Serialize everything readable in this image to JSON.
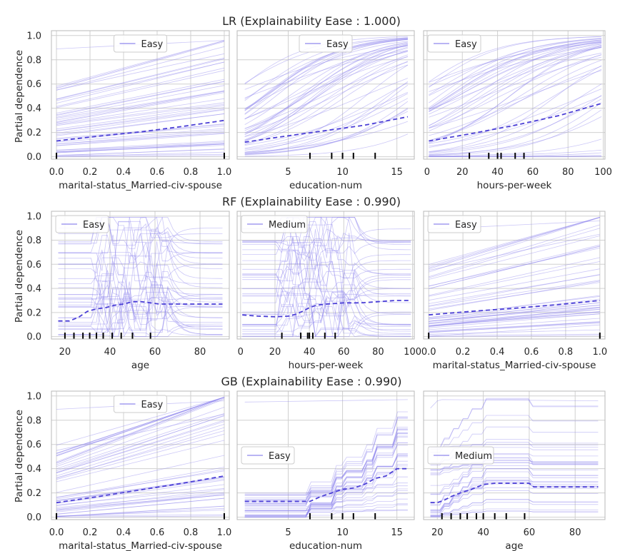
{
  "figure": {
    "ylabel": "Partial dependence",
    "row_titles": [
      "LR (Explainability Ease : 1.000)",
      "RF (Explainability Ease : 0.990)",
      "GB (Explainability Ease : 0.990)"
    ]
  },
  "colors": {
    "ice": "#8f86ee",
    "pd": "#4b3fd6",
    "grid": "#d0d0d0",
    "frame": "#b8b8b8",
    "rug": "#000000"
  },
  "chart_data": [
    {
      "type": "line",
      "model": "LR",
      "feature": "marital-status_Married-civ-spouse",
      "xlabel": "marital-status_Married-civ-spouse",
      "legend": "Easy",
      "legend_loc": "top-center",
      "xlim": [
        -0.03,
        1.03
      ],
      "ylim": [
        -0.02,
        1.04
      ],
      "xticks": [
        0.0,
        0.2,
        0.4,
        0.6,
        0.8,
        1.0
      ],
      "xtick_labels": [
        "0.0",
        "0.2",
        "0.4",
        "0.6",
        "0.8",
        "1.0"
      ],
      "yticks": [
        0.0,
        0.2,
        0.4,
        0.6,
        0.8,
        1.0
      ],
      "ytick_labels": [
        "0.0",
        "0.2",
        "0.4",
        "0.6",
        "0.8",
        "1.0"
      ],
      "pd": {
        "x": [
          0,
          0.25,
          0.5,
          0.75,
          1.0
        ],
        "y": [
          0.13,
          0.17,
          0.205,
          0.25,
          0.3
        ]
      },
      "rug": [
        0,
        1
      ],
      "ice_style": "linear_lr"
    },
    {
      "type": "line",
      "model": "LR",
      "feature": "education-num",
      "xlabel": "education-num",
      "legend": "Easy",
      "legend_loc": "top-center",
      "xlim": [
        0.3,
        16.6
      ],
      "ylim": [
        -0.02,
        1.04
      ],
      "xticks": [
        5,
        10,
        15
      ],
      "xtick_labels": [
        "5",
        "10",
        "15"
      ],
      "yticks": [
        0.0,
        0.2,
        0.4,
        0.6,
        0.8,
        1.0
      ],
      "ytick_labels": [],
      "pd": {
        "x": [
          1,
          4,
          8,
          12,
          16
        ],
        "y": [
          0.12,
          0.16,
          0.21,
          0.26,
          0.33
        ]
      },
      "rug": [
        7,
        9,
        10,
        11,
        13
      ],
      "ice_style": "logistic"
    },
    {
      "type": "line",
      "model": "LR",
      "feature": "hours-per-week",
      "xlabel": "hours-per-week",
      "legend": "Easy",
      "legend_loc": "top-left",
      "xlim": [
        -2,
        101
      ],
      "ylim": [
        -0.02,
        1.04
      ],
      "xticks": [
        0,
        20,
        40,
        60,
        80,
        100
      ],
      "xtick_labels": [
        "0",
        "20",
        "40",
        "60",
        "80",
        "100"
      ],
      "yticks": [
        0.0,
        0.2,
        0.4,
        0.6,
        0.8,
        1.0
      ],
      "ytick_labels": [],
      "pd": {
        "x": [
          1,
          25,
          50,
          75,
          99
        ],
        "y": [
          0.13,
          0.19,
          0.26,
          0.34,
          0.44
        ]
      },
      "rug": [
        24,
        35,
        40,
        42,
        50,
        55
      ],
      "ice_style": "logistic"
    },
    {
      "type": "line",
      "model": "RF",
      "feature": "age",
      "xlabel": "age",
      "legend": "Easy",
      "legend_loc": "top-left",
      "xlim": [
        14,
        93
      ],
      "ylim": [
        -0.02,
        1.04
      ],
      "xticks": [
        20,
        40,
        60,
        80
      ],
      "xtick_labels": [
        "20",
        "40",
        "60",
        "80"
      ],
      "yticks": [
        0.0,
        0.2,
        0.4,
        0.6,
        0.8,
        1.0
      ],
      "ytick_labels": [
        "0.0",
        "0.2",
        "0.4",
        "0.6",
        "0.8",
        "1.0"
      ],
      "pd": {
        "x": [
          17,
          22,
          26,
          30,
          34,
          38,
          42,
          46,
          50,
          54,
          58,
          62,
          70,
          80,
          90
        ],
        "y": [
          0.13,
          0.13,
          0.16,
          0.21,
          0.23,
          0.24,
          0.26,
          0.27,
          0.29,
          0.29,
          0.28,
          0.27,
          0.27,
          0.27,
          0.27
        ]
      },
      "rug": [
        20,
        24,
        28,
        31,
        34,
        37,
        41,
        45,
        50,
        58
      ],
      "ice_style": "noisy"
    },
    {
      "type": "line",
      "model": "RF",
      "feature": "hours-per-week",
      "xlabel": "hours-per-week",
      "legend": "Medium",
      "legend_loc": "top-left",
      "xlim": [
        -2,
        101
      ],
      "ylim": [
        -0.02,
        1.04
      ],
      "xticks": [
        0,
        20,
        40,
        60,
        80,
        100
      ],
      "xtick_labels": [
        "0",
        "20",
        "40",
        "60",
        "80",
        "100"
      ],
      "yticks": [
        0.0,
        0.2,
        0.4,
        0.6,
        0.8,
        1.0
      ],
      "ytick_labels": [],
      "pd": {
        "x": [
          1,
          10,
          20,
          28,
          32,
          36,
          40,
          44,
          50,
          60,
          70,
          80,
          90,
          99
        ],
        "y": [
          0.18,
          0.17,
          0.165,
          0.17,
          0.185,
          0.21,
          0.24,
          0.26,
          0.27,
          0.28,
          0.28,
          0.29,
          0.3,
          0.3
        ]
      },
      "rug": [
        24,
        35,
        39,
        40,
        42,
        49,
        55
      ],
      "ice_style": "noisy"
    },
    {
      "type": "line",
      "model": "RF",
      "feature": "marital-status_Married-civ-spouse",
      "xlabel": "marital-status_Married-civ-spouse",
      "legend": "Easy",
      "legend_loc": "top-left",
      "xlim": [
        -0.03,
        1.03
      ],
      "ylim": [
        -0.02,
        1.04
      ],
      "xticks": [
        0.0,
        0.2,
        0.4,
        0.6,
        0.8,
        1.0
      ],
      "xtick_labels": [
        "0.0",
        "0.2",
        "0.4",
        "0.6",
        "0.8",
        "1.0"
      ],
      "yticks": [
        0.0,
        0.2,
        0.4,
        0.6,
        0.8,
        1.0
      ],
      "ytick_labels": [],
      "pd": {
        "x": [
          0,
          0.25,
          0.5,
          0.75,
          1.0
        ],
        "y": [
          0.18,
          0.21,
          0.235,
          0.265,
          0.3
        ]
      },
      "rug": [
        0,
        1
      ],
      "ice_style": "linear_rf"
    },
    {
      "type": "line",
      "model": "GB",
      "feature": "marital-status_Married-civ-spouse",
      "xlabel": "marital-status_Married-civ-spouse",
      "legend": "Easy",
      "legend_loc": "top-center",
      "xlim": [
        -0.03,
        1.03
      ],
      "ylim": [
        -0.02,
        1.04
      ],
      "xticks": [
        0.0,
        0.2,
        0.4,
        0.6,
        0.8,
        1.0
      ],
      "xtick_labels": [
        "0.0",
        "0.2",
        "0.4",
        "0.6",
        "0.8",
        "1.0"
      ],
      "yticks": [
        0.0,
        0.2,
        0.4,
        0.6,
        0.8,
        1.0
      ],
      "ytick_labels": [
        "0.0",
        "0.2",
        "0.4",
        "0.6",
        "0.8",
        "1.0"
      ],
      "pd": {
        "x": [
          0,
          0.25,
          0.5,
          0.75,
          1.0
        ],
        "y": [
          0.12,
          0.17,
          0.225,
          0.28,
          0.34
        ]
      },
      "rug": [
        0,
        1
      ],
      "ice_style": "linear_gb"
    },
    {
      "type": "line",
      "model": "GB",
      "feature": "education-num",
      "xlabel": "education-num",
      "legend": "Easy",
      "legend_loc": "center-left",
      "xlim": [
        0.3,
        16.6
      ],
      "ylim": [
        -0.02,
        1.04
      ],
      "xticks": [
        5,
        10,
        15
      ],
      "xtick_labels": [
        "5",
        "10",
        "15"
      ],
      "yticks": [
        0.0,
        0.2,
        0.4,
        0.6,
        0.8,
        1.0
      ],
      "ytick_labels": [],
      "pd": {
        "x": [
          1,
          7,
          8,
          9,
          10,
          11,
          12,
          13,
          14,
          15,
          16
        ],
        "y": [
          0.13,
          0.13,
          0.17,
          0.2,
          0.23,
          0.24,
          0.27,
          0.32,
          0.34,
          0.4,
          0.4
        ]
      },
      "rug": [
        7,
        9,
        10,
        11,
        13
      ],
      "ice_style": "step_edu"
    },
    {
      "type": "line",
      "model": "GB",
      "feature": "age",
      "xlabel": "age",
      "legend": "Medium",
      "legend_loc": "center-left",
      "xlim": [
        14,
        93
      ],
      "ylim": [
        -0.02,
        1.04
      ],
      "xticks": [
        20,
        40,
        60,
        80
      ],
      "xtick_labels": [
        "20",
        "40",
        "60",
        "80"
      ],
      "yticks": [
        0.0,
        0.2,
        0.4,
        0.6,
        0.8,
        1.0
      ],
      "ytick_labels": [],
      "pd": {
        "x": [
          17,
          20,
          23,
          26,
          30,
          35,
          40,
          45,
          50,
          55,
          60,
          62,
          70,
          80,
          90
        ],
        "y": [
          0.12,
          0.12,
          0.14,
          0.17,
          0.2,
          0.23,
          0.27,
          0.28,
          0.28,
          0.28,
          0.28,
          0.25,
          0.25,
          0.25,
          0.25
        ]
      },
      "rug": [
        22,
        26,
        30,
        33,
        37,
        40,
        45,
        50,
        58
      ],
      "ice_style": "step_age"
    }
  ]
}
